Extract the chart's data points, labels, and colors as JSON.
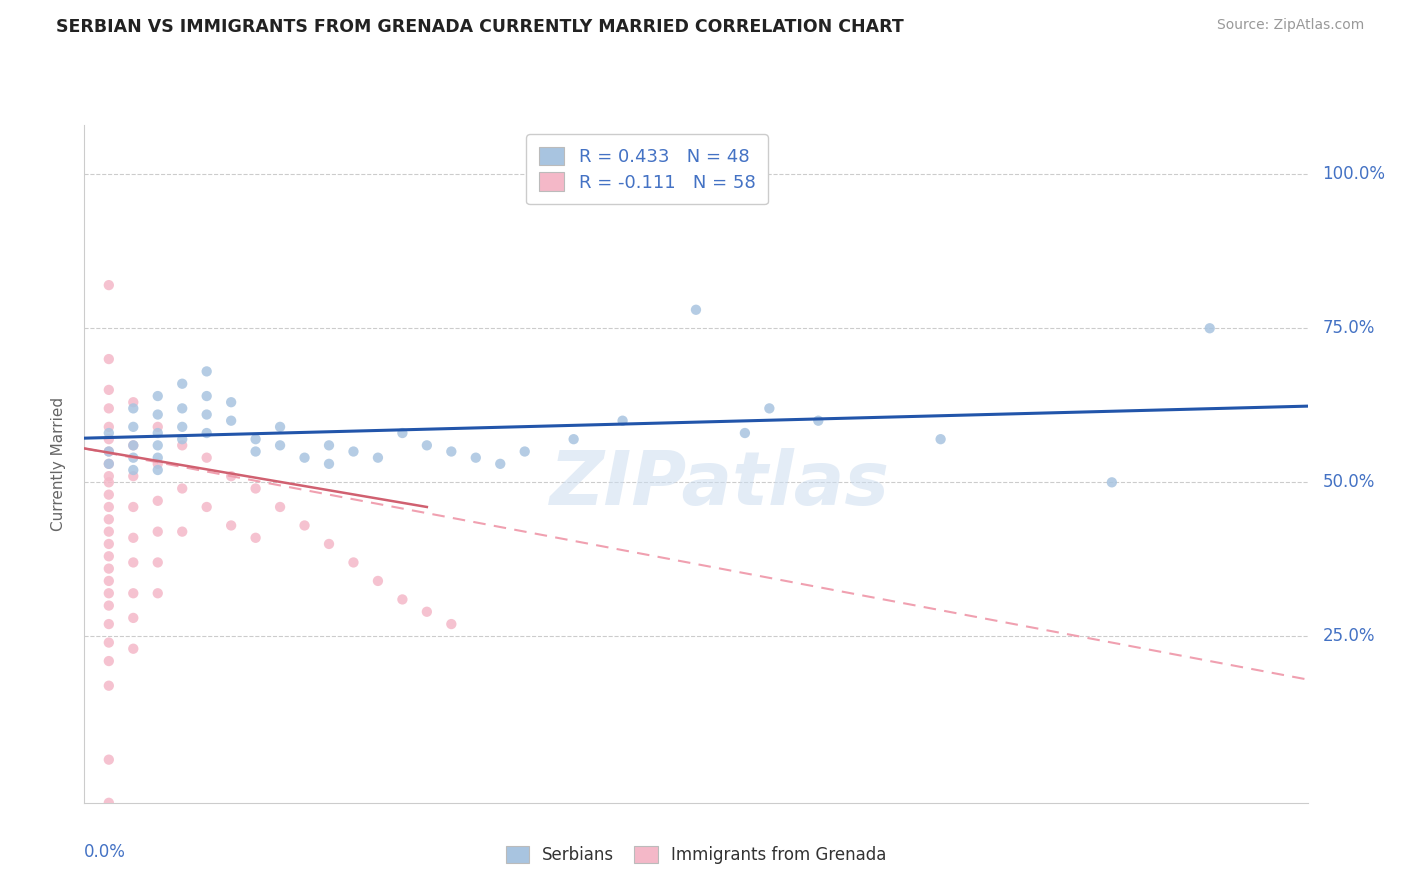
{
  "title": "SERBIAN VS IMMIGRANTS FROM GRENADA CURRENTLY MARRIED CORRELATION CHART",
  "source": "Source: ZipAtlas.com",
  "ylabel": "Currently Married",
  "ytick_labels": [
    "25.0%",
    "50.0%",
    "75.0%",
    "100.0%"
  ],
  "ytick_values": [
    0.25,
    0.5,
    0.75,
    1.0
  ],
  "xlim": [
    0.0,
    0.5
  ],
  "ylim": [
    -0.02,
    1.08
  ],
  "legend_label1": "R = 0.433   N = 48",
  "legend_label2": "R = -0.111   N = 58",
  "legend_bottom_label1": "Serbians",
  "legend_bottom_label2": "Immigrants from Grenada",
  "serbian_color": "#a8c4e0",
  "grenada_color": "#f4b8c8",
  "serbian_line_color": "#2255aa",
  "grenada_line_color_solid": "#d06070",
  "grenada_line_color_dash": "#f0a0b0",
  "watermark": "ZIPatlas",
  "serbian_scatter": [
    [
      0.01,
      0.58
    ],
    [
      0.01,
      0.55
    ],
    [
      0.01,
      0.53
    ],
    [
      0.02,
      0.62
    ],
    [
      0.02,
      0.59
    ],
    [
      0.02,
      0.56
    ],
    [
      0.02,
      0.54
    ],
    [
      0.02,
      0.52
    ],
    [
      0.03,
      0.64
    ],
    [
      0.03,
      0.61
    ],
    [
      0.03,
      0.58
    ],
    [
      0.03,
      0.56
    ],
    [
      0.03,
      0.54
    ],
    [
      0.03,
      0.52
    ],
    [
      0.04,
      0.66
    ],
    [
      0.04,
      0.62
    ],
    [
      0.04,
      0.59
    ],
    [
      0.04,
      0.57
    ],
    [
      0.05,
      0.68
    ],
    [
      0.05,
      0.64
    ],
    [
      0.05,
      0.61
    ],
    [
      0.05,
      0.58
    ],
    [
      0.06,
      0.63
    ],
    [
      0.06,
      0.6
    ],
    [
      0.07,
      0.57
    ],
    [
      0.07,
      0.55
    ],
    [
      0.08,
      0.59
    ],
    [
      0.08,
      0.56
    ],
    [
      0.09,
      0.54
    ],
    [
      0.1,
      0.56
    ],
    [
      0.1,
      0.53
    ],
    [
      0.11,
      0.55
    ],
    [
      0.12,
      0.54
    ],
    [
      0.13,
      0.58
    ],
    [
      0.14,
      0.56
    ],
    [
      0.15,
      0.55
    ],
    [
      0.16,
      0.54
    ],
    [
      0.17,
      0.53
    ],
    [
      0.18,
      0.55
    ],
    [
      0.2,
      0.57
    ],
    [
      0.22,
      0.6
    ],
    [
      0.25,
      0.78
    ],
    [
      0.27,
      0.58
    ],
    [
      0.28,
      0.62
    ],
    [
      0.3,
      0.6
    ],
    [
      0.35,
      0.57
    ],
    [
      0.42,
      0.5
    ],
    [
      0.46,
      0.75
    ]
  ],
  "grenada_scatter": [
    [
      0.01,
      0.82
    ],
    [
      0.01,
      0.7
    ],
    [
      0.01,
      0.65
    ],
    [
      0.01,
      0.62
    ],
    [
      0.01,
      0.59
    ],
    [
      0.01,
      0.57
    ],
    [
      0.01,
      0.55
    ],
    [
      0.01,
      0.53
    ],
    [
      0.01,
      0.51
    ],
    [
      0.01,
      0.5
    ],
    [
      0.01,
      0.48
    ],
    [
      0.01,
      0.46
    ],
    [
      0.01,
      0.44
    ],
    [
      0.01,
      0.42
    ],
    [
      0.01,
      0.4
    ],
    [
      0.01,
      0.38
    ],
    [
      0.01,
      0.36
    ],
    [
      0.01,
      0.34
    ],
    [
      0.01,
      0.32
    ],
    [
      0.01,
      0.3
    ],
    [
      0.01,
      0.27
    ],
    [
      0.01,
      0.24
    ],
    [
      0.01,
      0.21
    ],
    [
      0.01,
      0.17
    ],
    [
      0.01,
      0.05
    ],
    [
      0.02,
      0.63
    ],
    [
      0.02,
      0.56
    ],
    [
      0.02,
      0.51
    ],
    [
      0.02,
      0.46
    ],
    [
      0.02,
      0.41
    ],
    [
      0.02,
      0.37
    ],
    [
      0.02,
      0.32
    ],
    [
      0.02,
      0.28
    ],
    [
      0.02,
      0.23
    ],
    [
      0.03,
      0.59
    ],
    [
      0.03,
      0.53
    ],
    [
      0.03,
      0.47
    ],
    [
      0.03,
      0.42
    ],
    [
      0.03,
      0.37
    ],
    [
      0.03,
      0.32
    ],
    [
      0.04,
      0.56
    ],
    [
      0.04,
      0.49
    ],
    [
      0.04,
      0.42
    ],
    [
      0.05,
      0.54
    ],
    [
      0.05,
      0.46
    ],
    [
      0.06,
      0.51
    ],
    [
      0.06,
      0.43
    ],
    [
      0.07,
      0.49
    ],
    [
      0.07,
      0.41
    ],
    [
      0.08,
      0.46
    ],
    [
      0.09,
      0.43
    ],
    [
      0.1,
      0.4
    ],
    [
      0.11,
      0.37
    ],
    [
      0.12,
      0.34
    ],
    [
      0.13,
      0.31
    ],
    [
      0.14,
      0.29
    ],
    [
      0.15,
      0.27
    ],
    [
      0.01,
      -0.02
    ]
  ],
  "grenada_solid_line": [
    [
      0.0,
      0.555
    ],
    [
      0.14,
      0.46
    ]
  ],
  "grenada_dash_line": [
    [
      0.0,
      0.555
    ],
    [
      0.5,
      0.18
    ]
  ]
}
